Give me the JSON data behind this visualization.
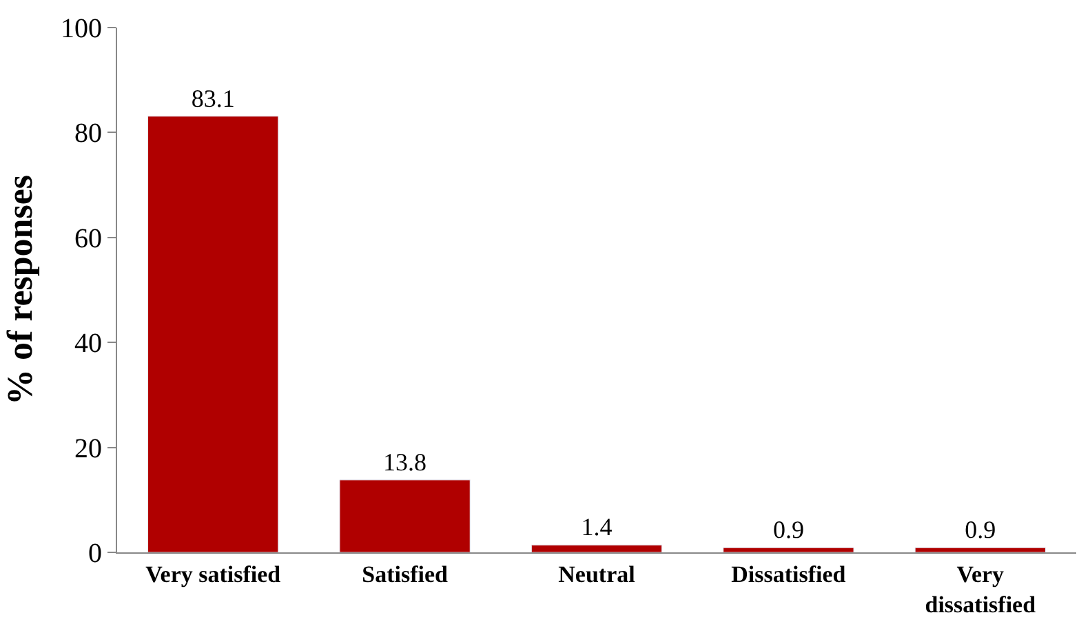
{
  "chart_data": {
    "type": "bar",
    "ylabel": "% of responses",
    "categories": [
      "Very satisfied",
      "Satisfied",
      "Neutral",
      "Dissatisfied",
      "Very dissatisfied"
    ],
    "values": [
      83.1,
      13.8,
      1.4,
      0.9,
      0.9
    ],
    "color": "#b00000",
    "ylim": [
      0,
      100
    ],
    "yticks": [
      0,
      20,
      40,
      60,
      80,
      100
    ],
    "data_labels": true
  }
}
